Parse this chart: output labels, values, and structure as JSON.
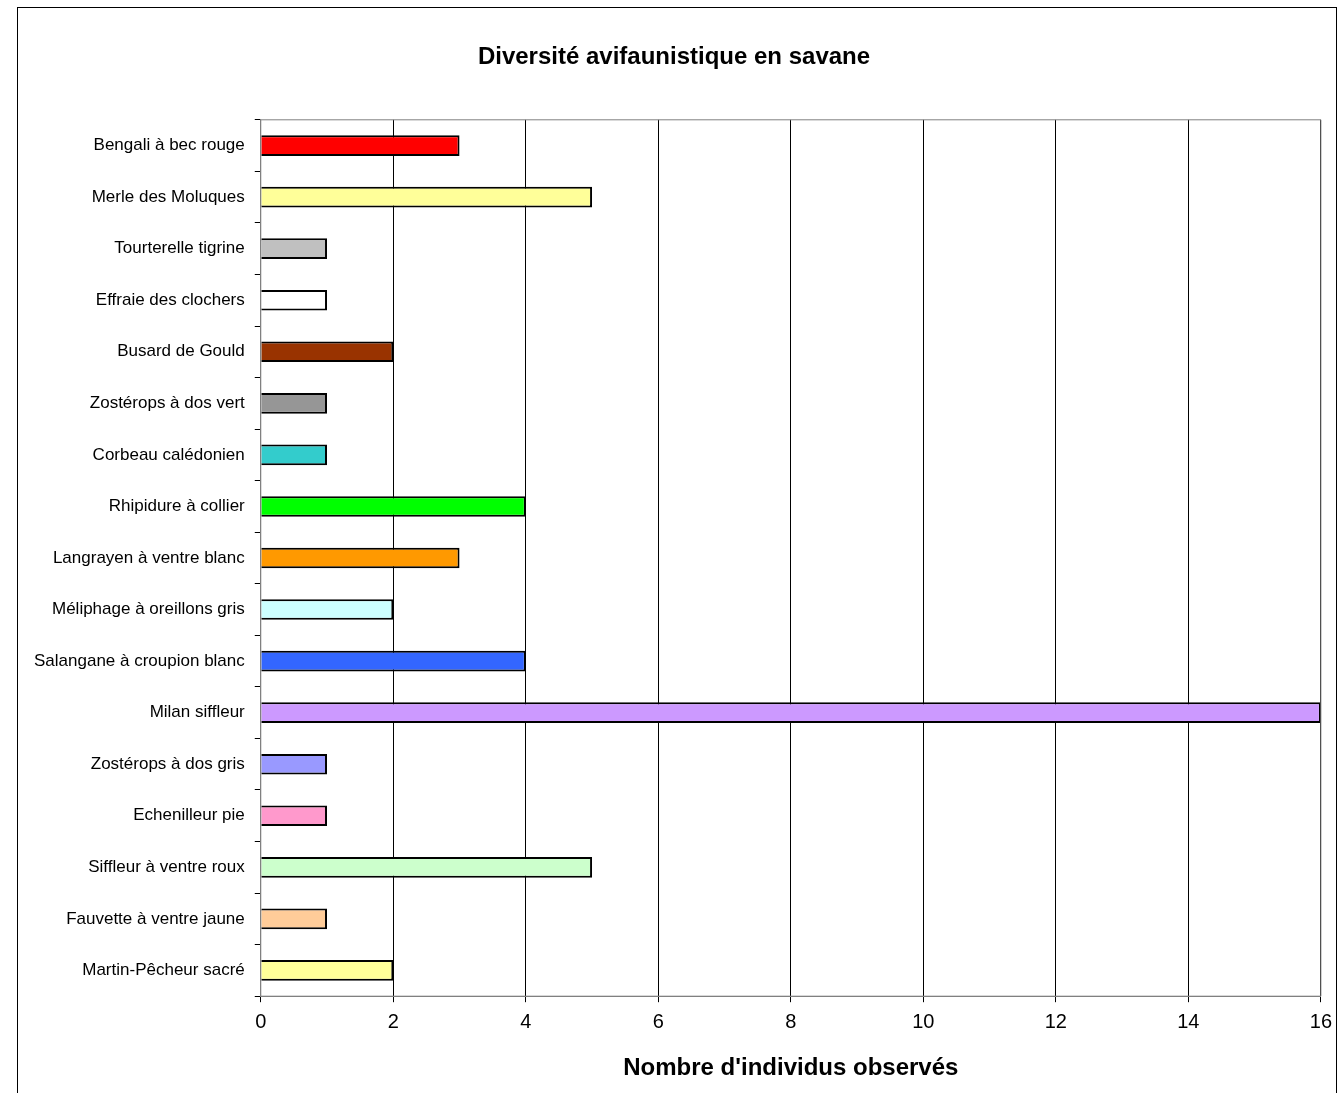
{
  "chart_data": {
    "type": "bar",
    "orientation": "horizontal",
    "title": "Diversité avifaunistique en savane",
    "xlabel": "Nombre d'individus observés",
    "categories": [
      "Bengali à bec rouge",
      "Merle des Moluques",
      "Tourterelle tigrine",
      "Effraie des clochers",
      "Busard de Gould",
      "Zostérops à dos vert",
      "Corbeau calédonien",
      "Rhipidure à collier",
      "Langrayen à ventre blanc",
      "Méliphage à oreillons gris",
      "Salangane à croupion blanc",
      "Milan siffleur",
      "Zostérops à dos gris",
      "Echenilleur pie",
      "Siffleur à ventre roux",
      "Fauvette à ventre jaune",
      "Martin-Pêcheur sacré"
    ],
    "values": [
      3,
      5,
      1,
      1,
      2,
      1,
      1,
      4,
      3,
      2,
      4,
      16,
      1,
      1,
      5,
      1,
      2
    ],
    "colors": [
      "#ff0000",
      "#ffff99",
      "#c0c0c0",
      "#ffffff",
      "#993300",
      "#969696",
      "#33cccc",
      "#00ff00",
      "#ff9900",
      "#ccffff",
      "#3366ff",
      "#cc99ff",
      "#9999ff",
      "#ff99cc",
      "#ccffcc",
      "#ffcc99",
      "#ffff99"
    ],
    "xlim": [
      0,
      16
    ],
    "xticks": [
      0,
      2,
      4,
      6,
      8,
      10,
      12,
      14,
      16
    ],
    "grid": "x",
    "legend": false
  }
}
